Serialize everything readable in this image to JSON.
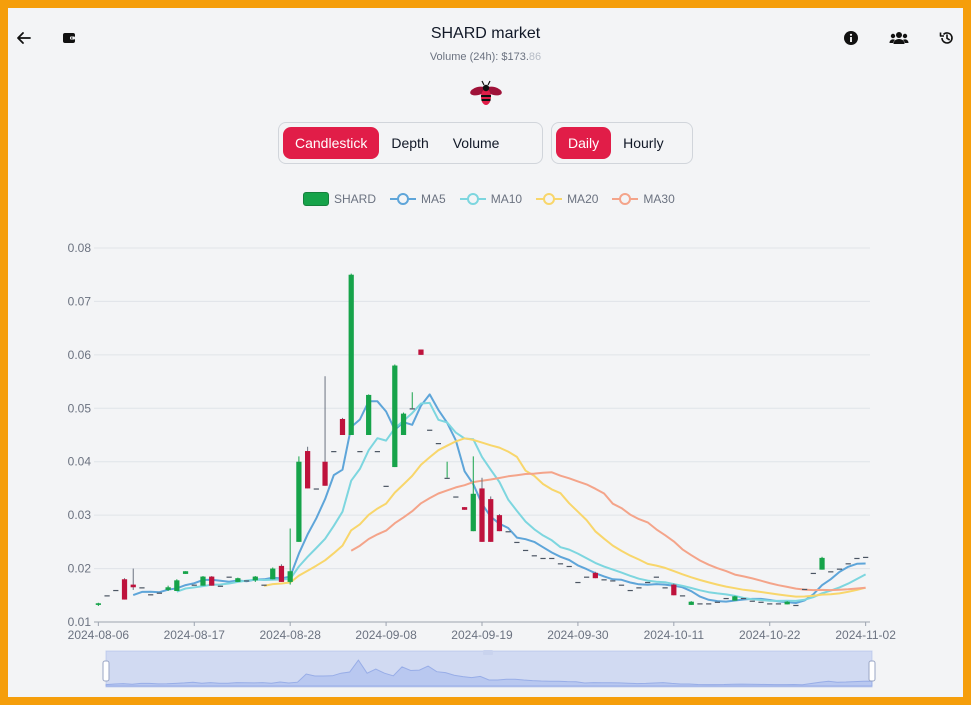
{
  "header": {
    "title": "SHARD market",
    "volume_label": "Volume (24h): ",
    "volume_main": "$173.",
    "volume_cents": "86"
  },
  "icons": {
    "back": "arrow-left-icon",
    "wallet": "wallet-icon",
    "info": "info-icon",
    "users": "users-icon",
    "history": "history-icon",
    "logo": "bee-logo-icon"
  },
  "chart_tabs": [
    "Candlestick",
    "Depth",
    "Volume"
  ],
  "chart_tab_active": "Candlestick",
  "interval_tabs": [
    "Daily",
    "Hourly"
  ],
  "interval_tab_active": "Daily",
  "legend": [
    {
      "name": "SHARD",
      "color": "#16a34a",
      "kind": "candle"
    },
    {
      "name": "MA5",
      "color": "#5ea5d9",
      "kind": "line"
    },
    {
      "name": "MA10",
      "color": "#7dd6df",
      "kind": "line"
    },
    {
      "name": "MA20",
      "color": "#f8d66b",
      "kind": "line"
    },
    {
      "name": "MA30",
      "color": "#f4a48a",
      "kind": "line"
    }
  ],
  "colors": {
    "up": "#16a34a",
    "down": "#be123c",
    "accent": "#e11d48"
  },
  "chart_data": {
    "type": "candlestick",
    "ylim": [
      0.01,
      0.08
    ],
    "yticks": [
      "0.08",
      "0.07",
      "0.06",
      "0.05",
      "0.04",
      "0.03",
      "0.02",
      "0.01"
    ],
    "xticks": [
      {
        "label": "2024-08-06",
        "day": 0
      },
      {
        "label": "2024-08-17",
        "day": 11
      },
      {
        "label": "2024-08-28",
        "day": 22
      },
      {
        "label": "2024-09-08",
        "day": 33
      },
      {
        "label": "2024-09-19",
        "day": 44
      },
      {
        "label": "2024-09-30",
        "day": 55
      },
      {
        "label": "2024-10-11",
        "day": 66
      },
      {
        "label": "2024-10-22",
        "day": 77
      },
      {
        "label": "2024-11-02",
        "day": 88
      }
    ],
    "candles": [
      [
        0.0132,
        0.0135,
        0.013,
        0.0136
      ],
      [
        0.015,
        0.015,
        0.015,
        0.015
      ],
      [
        0.016,
        0.016,
        0.016,
        0.016
      ],
      [
        0.018,
        0.0142,
        0.0142,
        0.0182
      ],
      [
        0.017,
        0.0165,
        0.016,
        0.02
      ],
      [
        0.0165,
        0.0165,
        0.0165,
        0.0165
      ],
      [
        0.0152,
        0.0152,
        0.0152,
        0.0152
      ],
      [
        0.0155,
        0.0155,
        0.0155,
        0.0155
      ],
      [
        0.016,
        0.0165,
        0.0158,
        0.0168
      ],
      [
        0.0158,
        0.0178,
        0.0158,
        0.018
      ],
      [
        0.019,
        0.0195,
        0.019,
        0.0195
      ],
      [
        0.017,
        0.017,
        0.017,
        0.017
      ],
      [
        0.0168,
        0.0185,
        0.0168,
        0.0186
      ],
      [
        0.0185,
        0.0168,
        0.0168,
        0.0186
      ],
      [
        0.0168,
        0.0168,
        0.0168,
        0.0168
      ],
      [
        0.0185,
        0.0185,
        0.0185,
        0.0185
      ],
      [
        0.0175,
        0.0182,
        0.0175,
        0.0183
      ],
      [
        0.0178,
        0.0178,
        0.0178,
        0.0178
      ],
      [
        0.0178,
        0.0185,
        0.0175,
        0.0186
      ],
      [
        0.017,
        0.017,
        0.017,
        0.017
      ],
      [
        0.018,
        0.02,
        0.018,
        0.0202
      ],
      [
        0.0205,
        0.0175,
        0.0175,
        0.0208
      ],
      [
        0.0175,
        0.0195,
        0.017,
        0.0275
      ],
      [
        0.025,
        0.04,
        0.025,
        0.041
      ],
      [
        0.042,
        0.035,
        0.035,
        0.0428
      ],
      [
        0.035,
        0.035,
        0.035,
        0.035
      ],
      [
        0.04,
        0.0355,
        0.0355,
        0.056
      ],
      [
        0.042,
        0.042,
        0.042,
        0.042
      ],
      [
        0.048,
        0.045,
        0.045,
        0.0482
      ],
      [
        0.045,
        0.075,
        0.045,
        0.0752
      ],
      [
        0.042,
        0.042,
        0.042,
        0.042
      ],
      [
        0.045,
        0.0525,
        0.045,
        0.0526
      ],
      [
        0.042,
        0.042,
        0.042,
        0.042
      ],
      [
        0.0355,
        0.0355,
        0.0355,
        0.0355
      ],
      [
        0.039,
        0.058,
        0.039,
        0.0582
      ],
      [
        0.045,
        0.049,
        0.045,
        0.0492
      ],
      [
        0.05,
        0.05,
        0.05,
        0.053
      ],
      [
        0.061,
        0.06,
        0.06,
        0.061
      ],
      [
        0.046,
        0.046,
        0.046,
        0.046
      ],
      [
        0.0435,
        0.0435,
        0.0435,
        0.0435
      ],
      [
        0.037,
        0.037,
        0.037,
        0.04
      ],
      [
        0.0335,
        0.0335,
        0.0335,
        0.0335
      ],
      [
        0.0315,
        0.031,
        0.031,
        0.0315
      ],
      [
        0.027,
        0.034,
        0.027,
        0.041
      ],
      [
        0.035,
        0.025,
        0.025,
        0.037
      ],
      [
        0.033,
        0.025,
        0.025,
        0.0335
      ],
      [
        0.03,
        0.027,
        0.027,
        0.0302
      ],
      [
        0.027,
        0.027,
        0.027,
        0.027
      ],
      [
        0.025,
        0.025,
        0.025,
        0.025
      ],
      [
        0.0235,
        0.0235,
        0.0235,
        0.0235
      ],
      [
        0.0225,
        0.0225,
        0.0225,
        0.0225
      ],
      [
        0.022,
        0.022,
        0.022,
        0.022
      ],
      [
        0.022,
        0.022,
        0.022,
        0.022
      ],
      [
        0.021,
        0.021,
        0.021,
        0.021
      ],
      [
        0.0205,
        0.0205,
        0.0205,
        0.0205
      ],
      [
        0.0175,
        0.0175,
        0.0175,
        0.0175
      ],
      [
        0.0185,
        0.0185,
        0.0185,
        0.0185
      ],
      [
        0.0192,
        0.0182,
        0.0182,
        0.0194
      ],
      [
        0.018,
        0.018,
        0.018,
        0.018
      ],
      [
        0.0178,
        0.0178,
        0.0178,
        0.0178
      ],
      [
        0.017,
        0.017,
        0.017,
        0.017
      ],
      [
        0.016,
        0.016,
        0.016,
        0.016
      ],
      [
        0.0165,
        0.0165,
        0.0165,
        0.0165
      ],
      [
        0.0175,
        0.0175,
        0.0175,
        0.0175
      ],
      [
        0.0185,
        0.0185,
        0.0185,
        0.0185
      ],
      [
        0.0165,
        0.0165,
        0.0165,
        0.0165
      ],
      [
        0.017,
        0.015,
        0.015,
        0.0172
      ],
      [
        0.015,
        0.015,
        0.015,
        0.015
      ],
      [
        0.0132,
        0.0138,
        0.0132,
        0.0139
      ],
      [
        0.0135,
        0.0135,
        0.0135,
        0.0135
      ],
      [
        0.0135,
        0.0135,
        0.0135,
        0.0135
      ],
      [
        0.0138,
        0.0138,
        0.0138,
        0.0138
      ],
      [
        0.0145,
        0.0145,
        0.0145,
        0.0145
      ],
      [
        0.014,
        0.0148,
        0.014,
        0.0149
      ],
      [
        0.0145,
        0.0145,
        0.0145,
        0.0145
      ],
      [
        0.014,
        0.014,
        0.014,
        0.014
      ],
      [
        0.0138,
        0.0138,
        0.0138,
        0.0138
      ],
      [
        0.0135,
        0.0135,
        0.0135,
        0.0135
      ],
      [
        0.0135,
        0.0135,
        0.0135,
        0.0135
      ],
      [
        0.0133,
        0.0138,
        0.0133,
        0.0139
      ],
      [
        0.0132,
        0.0132,
        0.0132,
        0.0132
      ],
      [
        0.0162,
        0.0162,
        0.0162,
        0.0162
      ],
      [
        0.0192,
        0.0192,
        0.0192,
        0.0192
      ],
      [
        0.0198,
        0.022,
        0.0198,
        0.0222
      ],
      [
        0.0195,
        0.0195,
        0.0195,
        0.0195
      ],
      [
        0.02,
        0.02,
        0.02,
        0.02
      ],
      [
        0.021,
        0.021,
        0.021,
        0.021
      ],
      [
        0.022,
        0.022,
        0.022,
        0.022
      ],
      [
        0.0222,
        0.0222,
        0.0222,
        0.0222
      ]
    ]
  }
}
